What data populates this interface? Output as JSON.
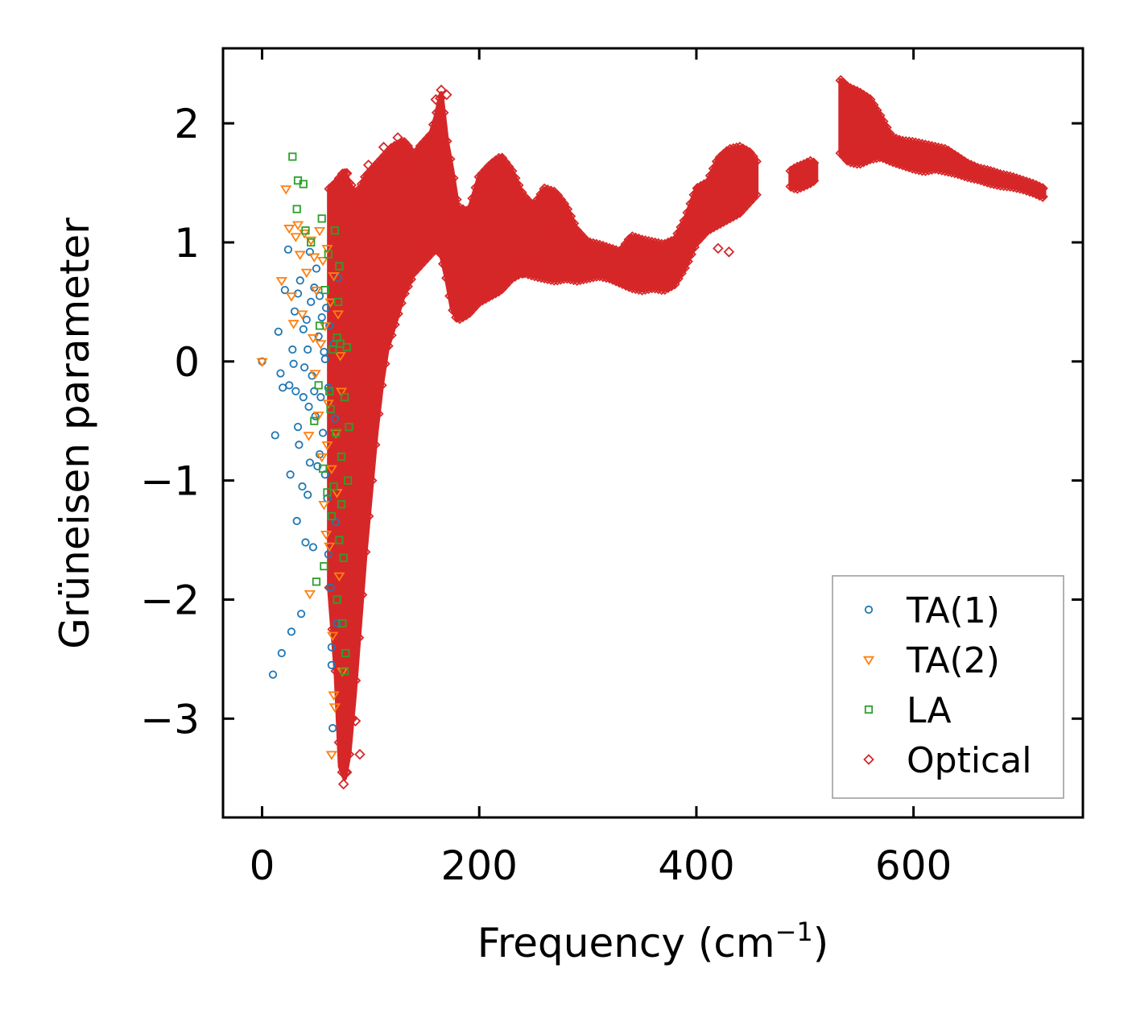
{
  "chart_data": {
    "type": "scatter",
    "title": "",
    "xlabel": "Frequency (cm",
    "xlabel_sup": "−1",
    "xlabel_end": ")",
    "ylabel": "Grüneisen parameter",
    "xlim": [
      -36,
      756
    ],
    "ylim": [
      -3.83,
      2.63
    ],
    "xticks": [
      0,
      200,
      400,
      600
    ],
    "xtick_labels": [
      "0",
      "200",
      "400",
      "600"
    ],
    "yticks": [
      -3,
      -2,
      -1,
      0,
      1,
      2
    ],
    "ytick_labels": [
      "−3",
      "−2",
      "−1",
      "0",
      "1",
      "2"
    ],
    "legend_position": "lower-right",
    "series": [
      {
        "name": "TA(1)",
        "marker": "circle",
        "color": "#1f77b4",
        "points": [
          [
            0,
            0
          ],
          [
            10,
            -2.63
          ],
          [
            12,
            -0.62
          ],
          [
            15,
            0.25
          ],
          [
            17,
            -0.1
          ],
          [
            18,
            -2.45
          ],
          [
            19,
            -0.22
          ],
          [
            21,
            0.6
          ],
          [
            24,
            0.94
          ],
          [
            25,
            -0.2
          ],
          [
            26,
            -0.95
          ],
          [
            27,
            -2.27
          ],
          [
            28,
            0.1
          ],
          [
            29,
            -0.02
          ],
          [
            30,
            0.42
          ],
          [
            31,
            -0.25
          ],
          [
            32,
            -1.34
          ],
          [
            33,
            0.57
          ],
          [
            34,
            -0.7
          ],
          [
            35,
            0.68
          ],
          [
            36,
            -2.12
          ],
          [
            37,
            -1.05
          ],
          [
            38,
            0.27
          ],
          [
            39,
            -0.05
          ],
          [
            40,
            -1.52
          ],
          [
            41,
            0.35
          ],
          [
            42,
            -1.12
          ],
          [
            43,
            -0.38
          ],
          [
            44,
            0.92
          ],
          [
            45,
            0.5
          ],
          [
            46,
            -0.12
          ],
          [
            47,
            -1.56
          ],
          [
            48,
            0.62
          ],
          [
            49,
            -0.46
          ],
          [
            50,
            0.78
          ],
          [
            51,
            -0.88
          ],
          [
            52,
            0.21
          ],
          [
            53,
            0.55
          ],
          [
            54,
            -0.3
          ],
          [
            55,
            0.37
          ],
          [
            56,
            -0.6
          ],
          [
            57,
            0.08
          ],
          [
            58,
            -0.95
          ],
          [
            59,
            0.45
          ],
          [
            60,
            -1.15
          ],
          [
            61,
            -0.22
          ],
          [
            62,
            0.3
          ],
          [
            63,
            -1.9
          ],
          [
            64,
            -2.4
          ],
          [
            65,
            -3.08
          ],
          [
            66,
            0.15
          ],
          [
            67,
            -0.48
          ],
          [
            68,
            -1.35
          ],
          [
            69,
            -2.2
          ],
          [
            70,
            0.7
          ],
          [
            42,
            0.1
          ],
          [
            38,
            -0.3
          ],
          [
            48,
            -0.25
          ],
          [
            53,
            -0.78
          ],
          [
            58,
            0.02
          ],
          [
            33,
            -0.55
          ],
          [
            44,
            -0.85
          ],
          [
            61,
            -1.62
          ],
          [
            64,
            -2.55
          ]
        ]
      },
      {
        "name": "TA(2)",
        "marker": "triangle-down",
        "color": "#ff7f0e",
        "points": [
          [
            0,
            0
          ],
          [
            18,
            0.68
          ],
          [
            22,
            1.45
          ],
          [
            25,
            1.12
          ],
          [
            27,
            0.55
          ],
          [
            29,
            0.32
          ],
          [
            31,
            1.05
          ],
          [
            33,
            1.15
          ],
          [
            35,
            0.9
          ],
          [
            37,
            0.4
          ],
          [
            39,
            1.08
          ],
          [
            41,
            0.75
          ],
          [
            43,
            -0.62
          ],
          [
            44,
            -1.95
          ],
          [
            45,
            1.02
          ],
          [
            47,
            0.2
          ],
          [
            49,
            -0.1
          ],
          [
            50,
            0.6
          ],
          [
            52,
            -0.45
          ],
          [
            53,
            1.1
          ],
          [
            55,
            -0.8
          ],
          [
            56,
            0.85
          ],
          [
            57,
            -1.2
          ],
          [
            58,
            0.3
          ],
          [
            59,
            -1.45
          ],
          [
            60,
            0.95
          ],
          [
            61,
            -0.35
          ],
          [
            62,
            -1.55
          ],
          [
            63,
            0.5
          ],
          [
            64,
            -0.9
          ],
          [
            65,
            -2.3
          ],
          [
            66,
            0.72
          ],
          [
            67,
            -2.9
          ],
          [
            68,
            -0.6
          ],
          [
            69,
            -1.1
          ],
          [
            70,
            0.4
          ],
          [
            71,
            -1.8
          ],
          [
            72,
            0.05
          ],
          [
            73,
            -0.25
          ],
          [
            74,
            -2.6
          ],
          [
            64,
            -3.3
          ],
          [
            66,
            -2.8
          ],
          [
            60,
            -0.7
          ],
          [
            54,
            0.15
          ],
          [
            48,
            0.88
          ]
        ]
      },
      {
        "name": "LA",
        "marker": "square",
        "color": "#2ca02c",
        "points": [
          [
            28,
            1.72
          ],
          [
            32,
            1.28
          ],
          [
            33,
            1.52
          ],
          [
            38,
            1.49
          ],
          [
            40,
            1.1
          ],
          [
            45,
            1.0
          ],
          [
            48,
            -0.5
          ],
          [
            50,
            -1.85
          ],
          [
            52,
            -0.2
          ],
          [
            53,
            0.3
          ],
          [
            55,
            1.2
          ],
          [
            56,
            -0.9
          ],
          [
            57,
            -1.72
          ],
          [
            58,
            0.6
          ],
          [
            60,
            -1.1
          ],
          [
            61,
            0.9
          ],
          [
            63,
            -0.4
          ],
          [
            64,
            -1.3
          ],
          [
            65,
            0.1
          ],
          [
            67,
            1.1
          ],
          [
            68,
            -0.6
          ],
          [
            69,
            -2.0
          ],
          [
            70,
            0.5
          ],
          [
            71,
            -1.5
          ],
          [
            72,
            0.15
          ],
          [
            73,
            -0.8
          ],
          [
            74,
            -2.2
          ],
          [
            75,
            -1.65
          ],
          [
            76,
            -0.3
          ],
          [
            77,
            -2.45
          ],
          [
            78,
            0.12
          ],
          [
            79,
            -1.0
          ],
          [
            80,
            -0.55
          ],
          [
            76,
            -2.6
          ],
          [
            73,
            -1.2
          ],
          [
            71,
            0.8
          ],
          [
            69,
            0.2
          ],
          [
            66,
            -1.05
          ],
          [
            62,
            -0.25
          ]
        ]
      },
      {
        "name": "Optical",
        "marker": "diamond",
        "color": "#d62728",
        "points": []
      }
    ],
    "optical_band": {
      "x": [
        62,
        68,
        72,
        76,
        80,
        85,
        90,
        95,
        100,
        105,
        110,
        115,
        120,
        125,
        130,
        135,
        140,
        145,
        150,
        155,
        160,
        165,
        170,
        175,
        180,
        190,
        200,
        210,
        220,
        230,
        240,
        250,
        260,
        270,
        280,
        290,
        300,
        310,
        320,
        330,
        340,
        350,
        360,
        370,
        380,
        390,
        400,
        410,
        420,
        430,
        440,
        450,
        455
      ],
      "low": [
        -1.9,
        -2.6,
        -3.4,
        -3.5,
        -3.3,
        -2.8,
        -2.2,
        -1.6,
        -1.1,
        -0.6,
        -0.2,
        0.1,
        0.25,
        0.4,
        0.55,
        0.65,
        0.75,
        0.8,
        0.85,
        0.9,
        0.95,
        0.9,
        0.7,
        0.45,
        0.35,
        0.4,
        0.5,
        0.55,
        0.6,
        0.7,
        0.75,
        0.72,
        0.7,
        0.68,
        0.7,
        0.68,
        0.7,
        0.72,
        0.7,
        0.66,
        0.62,
        0.6,
        0.62,
        0.6,
        0.65,
        0.8,
        1.0,
        1.1,
        1.15,
        1.2,
        1.25,
        1.35,
        1.4
      ],
      "high": [
        1.45,
        1.5,
        1.55,
        1.6,
        1.5,
        1.4,
        1.45,
        1.55,
        1.6,
        1.65,
        1.7,
        1.75,
        1.8,
        1.82,
        1.85,
        1.8,
        1.72,
        1.8,
        1.85,
        1.9,
        2.05,
        2.25,
        1.85,
        1.6,
        1.3,
        1.25,
        1.55,
        1.65,
        1.72,
        1.6,
        1.4,
        1.3,
        1.45,
        1.42,
        1.3,
        1.1,
        1.0,
        0.98,
        0.95,
        0.92,
        1.05,
        1.02,
        1.0,
        0.98,
        1.02,
        1.2,
        1.45,
        1.5,
        1.7,
        1.78,
        1.8,
        1.75,
        1.68
      ],
      "segments": [
        {
          "x": [
            487,
            492,
            498,
            505,
            510
          ],
          "low": [
            1.47,
            1.45,
            1.47,
            1.5,
            1.53
          ],
          "high": [
            1.6,
            1.63,
            1.65,
            1.68,
            1.66
          ]
        },
        {
          "x": [
            533,
            540,
            550,
            560,
            570,
            580,
            590,
            600,
            610,
            620,
            630,
            640,
            650,
            660,
            670,
            680,
            690,
            700,
            710,
            720
          ],
          "low": [
            1.75,
            1.68,
            1.66,
            1.7,
            1.72,
            1.68,
            1.65,
            1.62,
            1.6,
            1.62,
            1.6,
            1.58,
            1.55,
            1.53,
            1.5,
            1.48,
            1.47,
            1.45,
            1.42,
            1.38
          ],
          "high": [
            2.36,
            2.3,
            2.26,
            2.2,
            2.05,
            1.88,
            1.85,
            1.84,
            1.82,
            1.8,
            1.78,
            1.72,
            1.66,
            1.62,
            1.6,
            1.57,
            1.55,
            1.52,
            1.49,
            1.45
          ]
        }
      ],
      "outliers": [
        [
          75,
          -3.55
        ],
        [
          78,
          -3.45
        ],
        [
          82,
          -3.0
        ],
        [
          86,
          -3.02
        ],
        [
          90,
          -3.3
        ],
        [
          72,
          -2.05
        ],
        [
          80,
          -2.75
        ],
        [
          66,
          1.47
        ],
        [
          70,
          1.2
        ],
        [
          78,
          1.58
        ],
        [
          82,
          1.48
        ],
        [
          98,
          1.65
        ],
        [
          112,
          1.8
        ],
        [
          125,
          1.88
        ],
        [
          165,
          2.28
        ],
        [
          170,
          2.24
        ],
        [
          160,
          2.2
        ],
        [
          135,
          1.68
        ],
        [
          585,
          1.76
        ],
        [
          600,
          1.75
        ],
        [
          640,
          1.68
        ],
        [
          420,
          0.95
        ],
        [
          430,
          0.92
        ],
        [
          100,
          0.15
        ],
        [
          95,
          -0.1
        ],
        [
          270,
          1.05
        ],
        [
          255,
          0.82
        ],
        [
          240,
          0.74
        ]
      ]
    }
  }
}
